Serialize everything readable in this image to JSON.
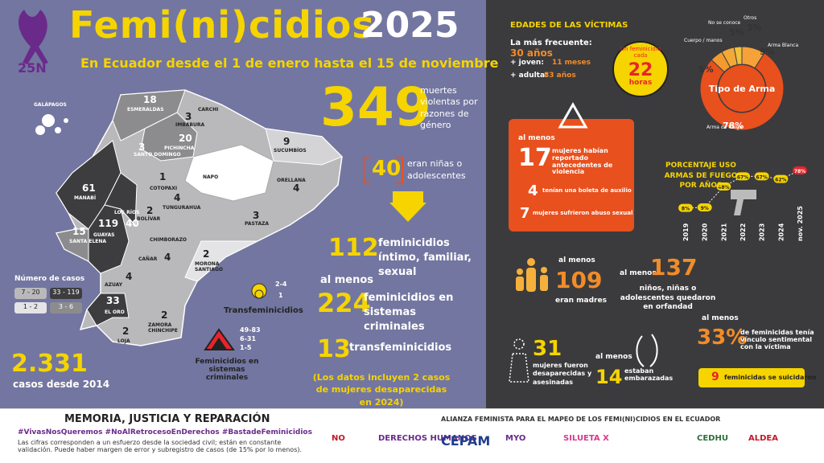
{
  "header": {
    "tag": "25N",
    "title": "Femi(ni)cidios",
    "year": "2025",
    "subtitle": "En Ecuador desde el 1 de enero hasta el 15 de noviembre"
  },
  "stats": {
    "total": {
      "number": "349",
      "text": "muertes violentas por razones de género"
    },
    "girls": {
      "number": "40",
      "text": "eran niñas o adolescentes"
    },
    "intimate": {
      "number": "112",
      "text": "feminicidios íntimo, familiar, sexual"
    },
    "criminal": {
      "prefix": "al menos",
      "number": "224",
      "text": "feminicidios en sistemas criminales"
    },
    "trans": {
      "number": "13",
      "text": "transfeminicidios"
    },
    "note": "(Los datos incluyen 2 casos de mujeres desaparecidas en 2024)",
    "since2014": {
      "number": "2.331",
      "text": "casos desde 2014"
    }
  },
  "provinces": [
    {
      "name": "GALÁPAGOS"
    },
    {
      "name": "ESMERALDAS",
      "count": "18"
    },
    {
      "name": "CARCHI"
    },
    {
      "name": "IMBABURA",
      "count": "3"
    },
    {
      "name": "PICHINCHA",
      "count": "20"
    },
    {
      "name": "SUCUMBÍOS",
      "count": "9"
    },
    {
      "name": "SANTO DOMINGO",
      "count": "3"
    },
    {
      "name": "NAPO"
    },
    {
      "name": "ORELLANA",
      "count": "4"
    },
    {
      "name": "MANABÍ",
      "count": "61"
    },
    {
      "name": "COTOPAXI",
      "count": "1"
    },
    {
      "name": "TUNGURAHUA",
      "count": "4"
    },
    {
      "name": "LOS RÍOS",
      "count": "40"
    },
    {
      "name": "BOLÍVAR",
      "count": "2"
    },
    {
      "name": "GUAYAS",
      "count": "119"
    },
    {
      "name": "SANTA ELENA",
      "count": "15"
    },
    {
      "name": "PASTAZA",
      "count": "3"
    },
    {
      "name": "CHIMBORAZO"
    },
    {
      "name": "CAÑAR",
      "count": "4"
    },
    {
      "name": "MORONA SANTIAGO",
      "count": "2"
    },
    {
      "name": "AZUAY",
      "count": "4"
    },
    {
      "name": "EL ORO",
      "count": "33"
    },
    {
      "name": "ZAMORA CHINCHIPE",
      "count": "2"
    },
    {
      "name": "LOJA",
      "count": "2"
    }
  ],
  "map_legend": {
    "title": "Número de casos",
    "ranges": [
      "7 - 20",
      "33 - 119",
      "1 - 2",
      "3 - 6"
    ]
  },
  "trans_legend": {
    "title": "Transfeminicidios",
    "ranges": [
      "2-4",
      "1"
    ]
  },
  "crime_legend": {
    "title": "Feminicidios en sistemas criminales",
    "ranges": [
      "49-83",
      "6-31",
      "1-5"
    ]
  },
  "ages": {
    "title": "EDADES DE LAS VÍCTIMAS",
    "frequent_label": "La más frecuente:",
    "frequent_value": "30 años",
    "youngest_label": "+ joven:",
    "youngest_value": "11 meses",
    "oldest_label": "+ adulta:",
    "oldest_value": "83 años"
  },
  "clock": {
    "text": "Un feminicidio cada",
    "number": "22",
    "unit": "horas"
  },
  "violence": {
    "prefix": "al menos",
    "items": [
      {
        "number": "17",
        "text": "mujeres habían reportado antecedentes de violencia"
      },
      {
        "number": "4",
        "text": "tenían una boleta de auxilio"
      },
      {
        "number": "7",
        "text": "mujeres sufrieron abuso sexual"
      }
    ]
  },
  "mothers": {
    "prefix": "al menos",
    "number": "109",
    "text": "eran madres"
  },
  "orphans": {
    "prefix": "al menos",
    "number": "137",
    "text": "niños, niñas o adolescentes quedaron en orfandad"
  },
  "missing": {
    "number": "31",
    "text": "mujeres fueron desaparecidas y asesinadas"
  },
  "pregnant": {
    "prefix": "al menos",
    "number": "14",
    "text": "estaban embarazadas"
  },
  "partner": {
    "prefix": "al menos",
    "number": "33%",
    "text": "de feminicidas tenía vínculo sentimental con la víctima"
  },
  "suicide": {
    "number": "9",
    "text": "feminicidas se suicidaron"
  },
  "footer": {
    "title": "MEMORIA, JUSTICIA Y REPARACIÓN",
    "hashtags": "#VivasNosQueremos   #NoAlRetrocesoEnDerechos   #BastadeFeminicidios",
    "disclaimer": "Las cifras corresponden a un esfuerzo desde la sociedad civil; están en constante validación. Puede haber margen de error y subregistro de casos (de 15% por lo menos).",
    "alliance": "ALIANZA FEMINISTA PARA EL MAPEO DE LOS FEMI(NI)CIDIOS EN EL ECUADOR",
    "logos": [
      "NO",
      "DERECHOS HUMANOS",
      "CEPAM",
      "MYO",
      "SILUETA X",
      "CEDHU",
      "ALDEA"
    ]
  },
  "chart_data": [
    {
      "type": "pie",
      "title": "Tipo de Arma",
      "categories": [
        "Arma Blanca",
        "Arma de fuego",
        "Cuerpo / manos",
        "No se conoce",
        "Otros"
      ],
      "values": [
        9,
        78,
        5,
        5,
        3
      ],
      "value_labels": [
        "9%",
        "78%",
        "5%",
        "5%",
        "3%"
      ],
      "colors": [
        "#f6a23a",
        "#e8501e",
        "#f39a2e",
        "#f2a935",
        "#f0c23c"
      ]
    },
    {
      "type": "line",
      "title": "PORCENTAJE USO ARMAS DE FUEGO POR AÑOS",
      "categories": [
        "2019",
        "2020",
        "2021",
        "2022",
        "2023",
        "2024",
        "nov. 2025"
      ],
      "values": [
        8,
        9,
        48,
        67,
        67,
        62,
        78
      ],
      "value_labels": [
        "8%",
        "9%",
        "48%",
        "67%",
        "67%",
        "62%",
        "78%"
      ],
      "color": "#f5d400",
      "last_color": "#e8242a"
    }
  ]
}
